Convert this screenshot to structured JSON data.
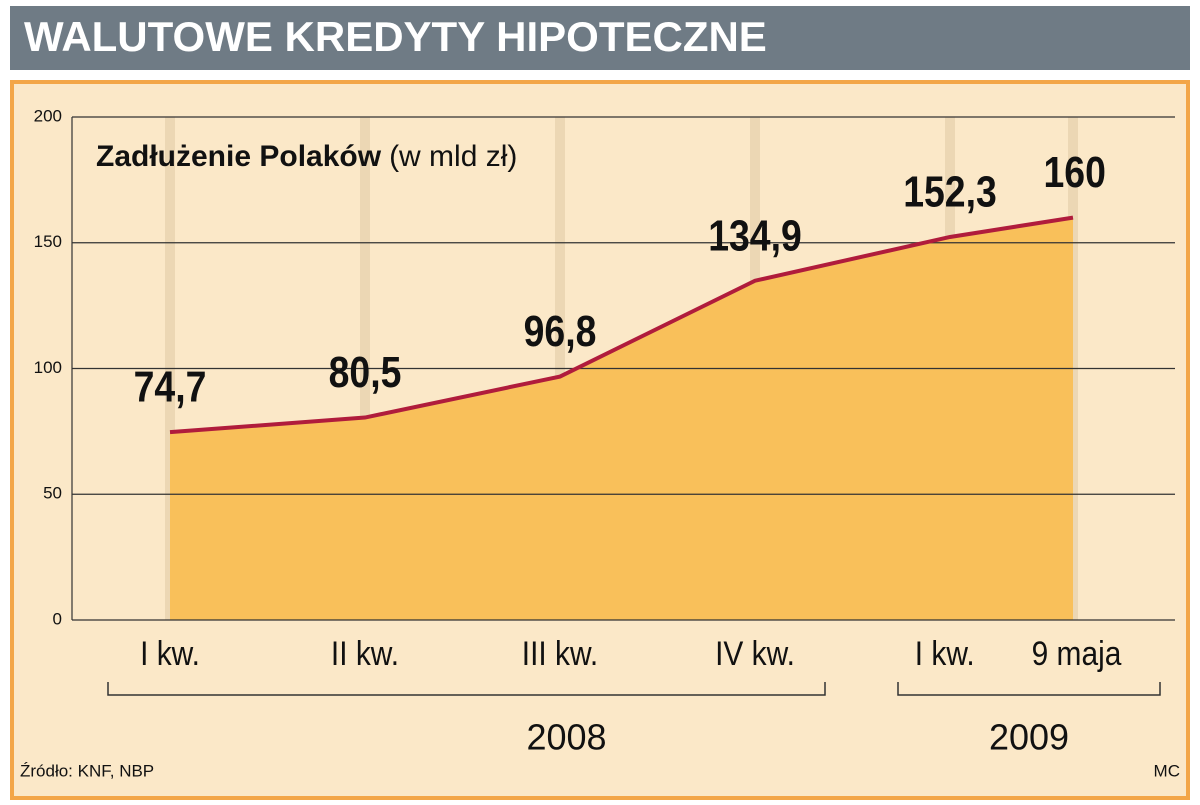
{
  "chart_data": {
    "type": "area",
    "title": "WALUTOWE KREDYTY HIPOTECZNE",
    "subtitle": "Zadłużenie Polaków",
    "unit": "(w mld zł)",
    "categories": [
      "I kw.",
      "II kw.",
      "III kw.",
      "IV kw.",
      "I kw.",
      "9 maja"
    ],
    "groups": [
      "2008",
      "2009"
    ],
    "values": [
      74.7,
      80.5,
      96.8,
      134.9,
      152.3,
      160
    ],
    "value_labels": [
      "74,7",
      "80,5",
      "96,8",
      "134,9",
      "152,3",
      "160"
    ],
    "ylim": [
      0,
      200
    ],
    "yticks": [
      0,
      50,
      100,
      150,
      200
    ],
    "grid": true,
    "color": "#f9c05a",
    "line_color": "#b01c3c",
    "source": "Źródło: KNF, NBP",
    "credit": "MC"
  }
}
